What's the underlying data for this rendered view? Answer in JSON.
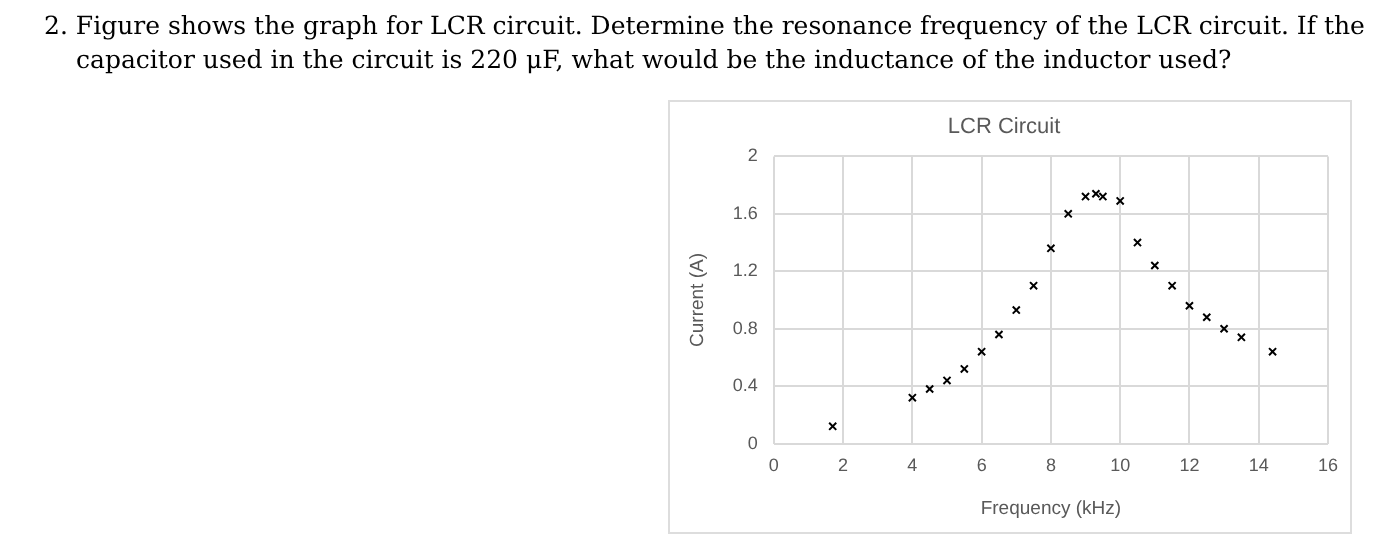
{
  "chart_data": {
    "type": "scatter",
    "title": "LCR Circuit",
    "xlabel": "Frequency (kHz)",
    "ylabel": "Current (A)",
    "annotations": [
      "2. Figure shows the graph for LCR circuit. Determine the resonance frequency of the LCR circuit. If the capacitor used in the circuit is 220 μF, what would be the inductance of the inductor used?"
    ],
    "x": [
      1.7,
      4,
      4.5,
      5,
      5.5,
      6,
      6.5,
      7,
      7.5,
      8,
      8.5,
      9,
      9.3,
      9.5,
      10,
      10.5,
      11,
      11.5,
      12,
      12.5,
      13,
      13.5,
      14.4
    ],
    "series": [
      {
        "color": "#000000",
        "values": [
          0.12,
          0.32,
          0.38,
          0.44,
          0.52,
          0.64,
          0.76,
          0.93,
          1.1,
          1.36,
          1.6,
          1.72,
          1.74,
          1.72,
          1.69,
          1.4,
          1.24,
          1.1,
          0.96,
          0.88,
          0.8,
          0.74,
          0.64
        ]
      }
    ],
    "xlim": [
      0,
      16
    ],
    "xticks": [
      0,
      2,
      4,
      6,
      8,
      10,
      12,
      14,
      16
    ],
    "ylim": [
      0,
      2
    ],
    "yticks": [
      0,
      0.4,
      0.8,
      1.2,
      1.6,
      2
    ],
    "grid": true,
    "legend": false,
    "marker": "cross"
  }
}
